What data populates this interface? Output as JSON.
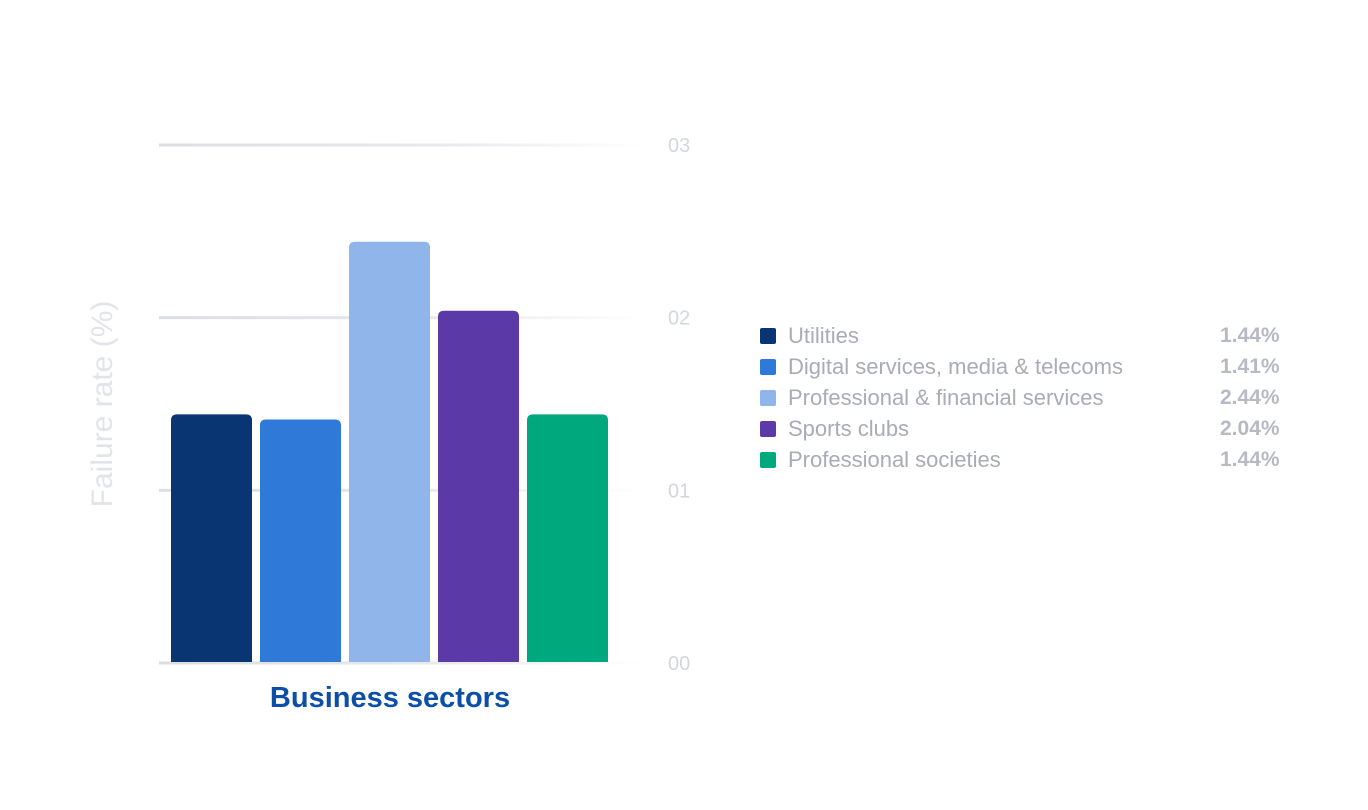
{
  "chart_data": {
    "type": "bar",
    "categories": [
      "Utilities",
      "Digital services, media & telecoms",
      "Professional & financial services",
      "Sports clubs",
      "Professional societies"
    ],
    "values": [
      1.44,
      1.41,
      2.44,
      2.04,
      1.44
    ],
    "value_labels": [
      "1.44%",
      "1.41%",
      "2.44%",
      "2.04%",
      "1.44%"
    ],
    "colors": [
      "#0a3573",
      "#2f79d8",
      "#8fb5ea",
      "#5b3aa8",
      "#00a87e"
    ],
    "ylim": [
      0,
      3
    ],
    "yticks": [
      0,
      1,
      2,
      3
    ],
    "ytick_labels": [
      "00",
      "01",
      "02",
      "03"
    ],
    "ylabel": "Failure rate (%)",
    "xlabel": "Business sectors",
    "title": "",
    "grid": true,
    "legend_position": "right"
  }
}
